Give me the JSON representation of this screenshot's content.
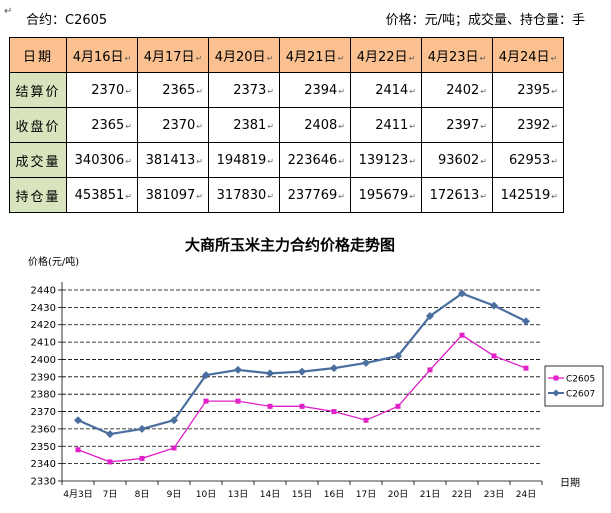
{
  "header": {
    "contract": "合约：C2605",
    "units": "价格：元/吨；成交量、持仓量：手"
  },
  "table": {
    "corner": "日期",
    "dates": [
      "4月16日",
      "4月17日",
      "4月20日",
      "4月21日",
      "4月22日",
      "4月23日",
      "4月24日"
    ],
    "rows": [
      {
        "label": "结算价",
        "values": [
          "2370",
          "2365",
          "2373",
          "2394",
          "2414",
          "2402",
          "2395"
        ]
      },
      {
        "label": "收盘价",
        "values": [
          "2365",
          "2370",
          "2381",
          "2408",
          "2411",
          "2397",
          "2392"
        ]
      },
      {
        "label": "成交量",
        "values": [
          "340306",
          "381413",
          "194819",
          "223646",
          "139123",
          "93602",
          "62953"
        ]
      },
      {
        "label": "持仓量",
        "values": [
          "453851",
          "381097",
          "317830",
          "237769",
          "195679",
          "172613",
          "142519"
        ]
      }
    ]
  },
  "chart_data": {
    "type": "line",
    "title": "大商所玉米主力合约价格走势图",
    "ylabel": "价格(元/吨)",
    "xlabel": "日期",
    "categories": [
      "4月3日",
      "7日",
      "8日",
      "9日",
      "10日",
      "13日",
      "14日",
      "15日",
      "16日",
      "17日",
      "20日",
      "21日",
      "22日",
      "23日",
      "24日"
    ],
    "ylim": [
      2330,
      2440
    ],
    "yticks": [
      2330,
      2340,
      2350,
      2360,
      2370,
      2380,
      2390,
      2400,
      2410,
      2420,
      2430,
      2440
    ],
    "grid": true,
    "legend": "right",
    "series": [
      {
        "name": "C2605",
        "color": "#e020c8",
        "marker": "square",
        "values": [
          2348,
          2341,
          2343,
          2349,
          2376,
          2376,
          2373,
          2373,
          2370,
          2365,
          2373,
          2394,
          2414,
          2402,
          2395
        ]
      },
      {
        "name": "C2607",
        "color": "#4a6f9e",
        "marker": "diamond",
        "values": [
          2365,
          2357,
          2360,
          2365,
          2391,
          2394,
          2392,
          2393,
          2395,
          2398,
          2402,
          2425,
          2438,
          2431,
          2422
        ]
      }
    ]
  }
}
